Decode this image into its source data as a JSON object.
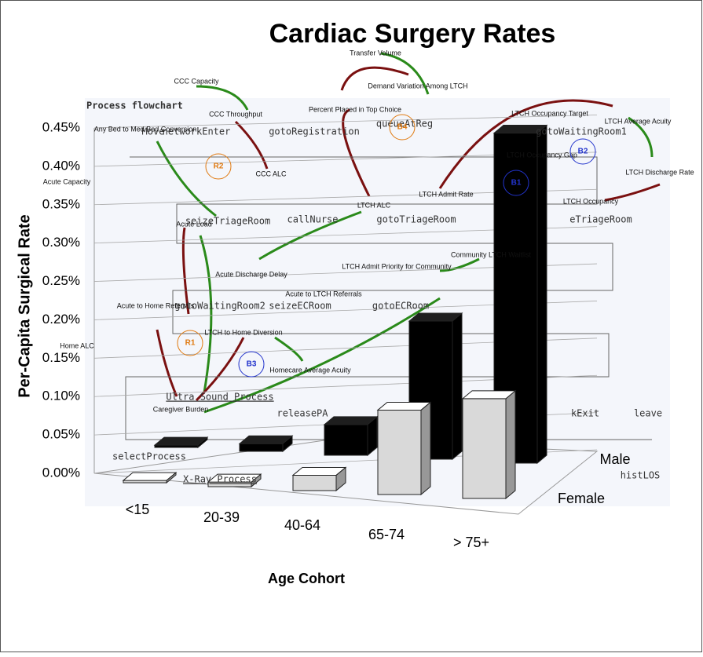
{
  "chart_data": {
    "type": "bar3d",
    "title": "Cardiac Surgery Rates",
    "ylabel": "Per-Capita Surgical Rate",
    "xlabel": "Age Cohort",
    "categories": [
      "<15",
      "20-39",
      "40-64",
      "65-74",
      "> 75+"
    ],
    "series": [
      {
        "name": "Male",
        "color": "#000000",
        "values": [
          0.003,
          0.01,
          0.04,
          0.18,
          0.43
        ]
      },
      {
        "name": "Female",
        "color": "#d9d9d9",
        "values": [
          0.003,
          0.006,
          0.02,
          0.11,
          0.13
        ]
      }
    ],
    "ylim": [
      0,
      0.45
    ],
    "yticks": [
      {
        "value": 0,
        "label": "0.00%"
      },
      {
        "value": 0.05,
        "label": "0.05%"
      },
      {
        "value": 0.1,
        "label": "0.10%"
      },
      {
        "value": 0.15,
        "label": "0.15%"
      },
      {
        "value": 0.2,
        "label": "0.20%"
      },
      {
        "value": 0.25,
        "label": "0.25%"
      },
      {
        "value": 0.3,
        "label": "0.30%"
      },
      {
        "value": 0.35,
        "label": "0.35%"
      },
      {
        "value": 0.4,
        "label": "0.40%"
      },
      {
        "value": 0.45,
        "label": "0.45%"
      }
    ],
    "grid": true
  },
  "overlay": {
    "flowchart": [
      "Process flowchart",
      "Move",
      "networkEnter",
      "gotoRegistration",
      "queueAtReg",
      "gotoWaitingRoom1",
      "seizeTriageRoom",
      "callNurse",
      "gotoTriageRoom",
      "eTriageRoom",
      "gotoWaitingRoom2",
      "seizeECRoom",
      "gotoECRoom",
      "Ultra Sound Process",
      "releasePA",
      "selectProcess",
      "X-Ray Process",
      "kExit",
      "leave",
      "histLOS"
    ],
    "causal": [
      "Transfer Volume",
      "Demand Variation Among LTCH",
      "Percent Placed in Top Choice",
      "CCC Capacity",
      "CCC Throughput",
      "Any Bed to Med Bed Conversion",
      "Acute Capacity",
      "CCC ALC",
      "LTCH ALC",
      "Acute Load",
      "LTCH Admit Priority for Community",
      "Acute Discharge Delay",
      "Acute to LTCH Referrals",
      "Acute to Home Referrals",
      "LTCH to Home Diversion",
      "Home ALC",
      "Homecare Average Acuity",
      "Caregiver Burden",
      "LTCH Occupancy Target",
      "LTCH Average Acuity",
      "LTCH Discharge Rate",
      "LTCH Occupancy Gap",
      "LTCH Occupancy",
      "Community LTCH Waitlist",
      "LTCH Admit Rate"
    ],
    "loops": [
      "R1",
      "R2",
      "B1",
      "B2",
      "B3",
      "B4"
    ]
  }
}
